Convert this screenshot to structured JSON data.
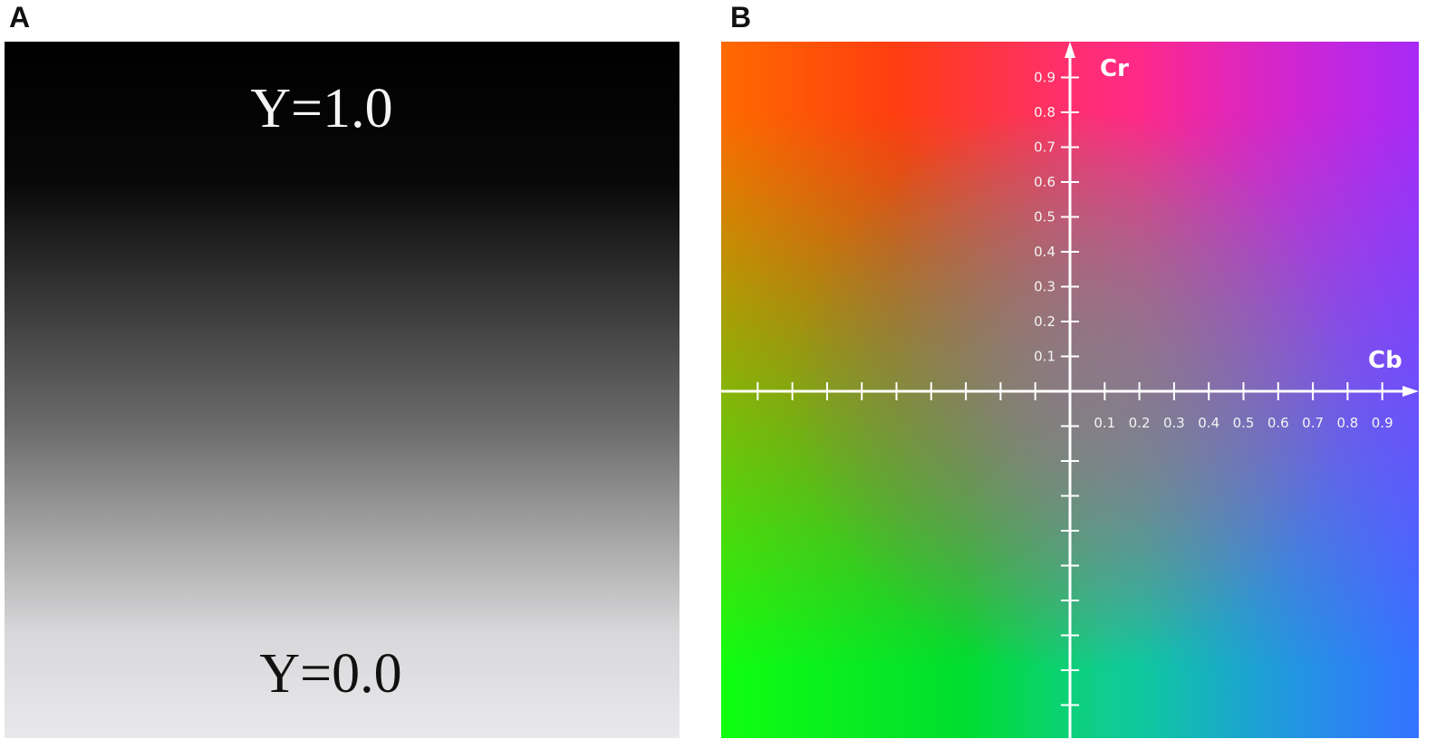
{
  "panel_a": {
    "label": "A",
    "top_text": "Y=1.0",
    "bottom_text": "Y=0.0"
  },
  "panel_b": {
    "label": "B",
    "vertical_axis": "Cr",
    "horizontal_axis": "Cb",
    "cr_ticks": [
      0.1,
      0.2,
      0.3,
      0.4,
      0.5,
      0.6,
      0.7,
      0.8,
      0.9
    ],
    "cb_ticks": [
      0.1,
      0.2,
      0.3,
      0.4,
      0.5,
      0.6,
      0.7,
      0.8,
      0.9
    ]
  }
}
